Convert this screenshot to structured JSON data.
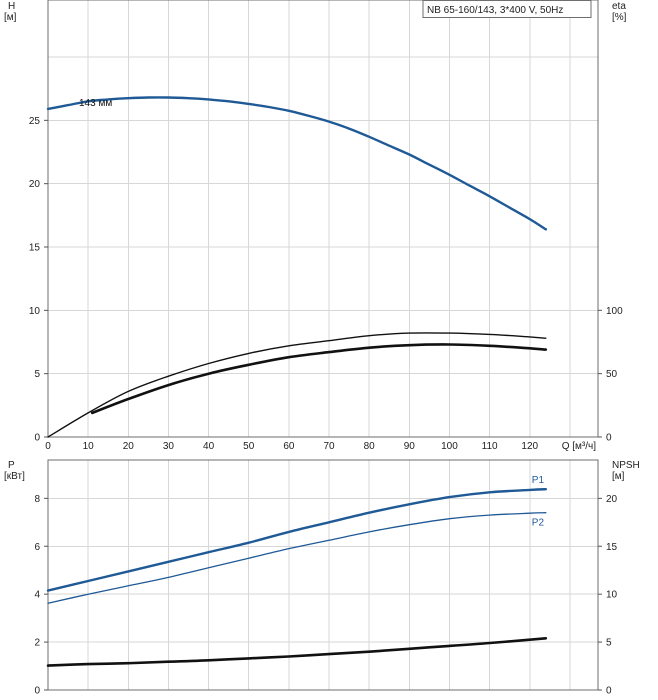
{
  "chart_data": [
    {
      "type": "line",
      "title": "NB 65-160/143, 3*400 V, 50Hz",
      "x_axis": {
        "label": "Q [м³/ч]",
        "range": [
          0,
          137
        ],
        "ticks": [
          0,
          10,
          20,
          30,
          40,
          50,
          60,
          70,
          80,
          90,
          100,
          110,
          120
        ]
      },
      "left_axis": {
        "name": "H",
        "unit": "[м]",
        "range": [
          0,
          34.5
        ],
        "ticks": [
          0,
          5,
          10,
          15,
          20,
          25
        ]
      },
      "right_axis": {
        "name": "eta",
        "unit": "[%]",
        "range": [
          0,
          345
        ],
        "ticks": [
          0,
          50,
          100
        ]
      },
      "grid": true,
      "series": [
        {
          "name": "143 мм",
          "axis": "left",
          "color": "#1f5a96",
          "width": 2.4,
          "x": [
            0,
            5,
            10,
            15,
            20,
            25,
            30,
            35,
            40,
            45,
            50,
            55,
            60,
            65,
            70,
            75,
            80,
            85,
            90,
            95,
            100,
            105,
            110,
            115,
            120,
            124
          ],
          "y": [
            25.9,
            26.2,
            26.5,
            26.65,
            26.75,
            26.8,
            26.8,
            26.75,
            26.65,
            26.5,
            26.3,
            26.05,
            25.75,
            25.35,
            24.9,
            24.35,
            23.7,
            23.0,
            22.3,
            21.5,
            20.7,
            19.85,
            19.0,
            18.1,
            17.2,
            16.4
          ]
        },
        {
          "axis": "right",
          "color": "#111111",
          "width": 1.4,
          "x": [
            0,
            10,
            20,
            30,
            40,
            50,
            60,
            70,
            80,
            90,
            100,
            110,
            120,
            124
          ],
          "y": [
            0,
            19,
            36,
            48,
            58,
            66,
            72,
            76,
            80,
            82,
            82,
            81,
            79,
            78
          ]
        },
        {
          "axis": "right",
          "color": "#111111",
          "width": 2.6,
          "x": [
            11,
            20,
            30,
            40,
            50,
            60,
            70,
            80,
            90,
            100,
            110,
            120,
            124
          ],
          "y": [
            19,
            30,
            41,
            50,
            57,
            63,
            67,
            70.5,
            72.5,
            73,
            72,
            70,
            69
          ]
        }
      ]
    },
    {
      "type": "line",
      "x_axis": {
        "range": [
          0,
          137
        ],
        "ticks": [
          0,
          10,
          20,
          30,
          40,
          50,
          60,
          70,
          80,
          90,
          100,
          110,
          120
        ]
      },
      "left_axis": {
        "name": "P",
        "unit": "[кВт]",
        "range": [
          0,
          9.6
        ],
        "ticks": [
          0,
          2,
          4,
          6,
          8
        ]
      },
      "right_axis": {
        "name": "NPSH",
        "unit": "[м]",
        "range": [
          0,
          24
        ],
        "ticks": [
          0,
          5,
          10,
          15,
          20
        ]
      },
      "grid": true,
      "series": [
        {
          "name": "P1",
          "axis": "left",
          "color": "#1f5a96",
          "width": 2.4,
          "x": [
            0,
            10,
            20,
            30,
            40,
            50,
            60,
            70,
            80,
            90,
            100,
            110,
            120,
            124
          ],
          "y": [
            4.15,
            4.55,
            4.95,
            5.35,
            5.75,
            6.15,
            6.6,
            7.0,
            7.4,
            7.75,
            8.05,
            8.25,
            8.35,
            8.38
          ]
        },
        {
          "name": "P2",
          "axis": "left",
          "color": "#1f5a96",
          "width": 1.3,
          "x": [
            0,
            10,
            20,
            30,
            40,
            50,
            60,
            70,
            80,
            90,
            100,
            110,
            120,
            124
          ],
          "y": [
            3.62,
            4.0,
            4.35,
            4.7,
            5.1,
            5.5,
            5.9,
            6.25,
            6.6,
            6.9,
            7.15,
            7.3,
            7.38,
            7.4
          ]
        },
        {
          "axis": "right",
          "color": "#111111",
          "width": 2.6,
          "x": [
            0,
            10,
            20,
            30,
            40,
            50,
            60,
            70,
            80,
            90,
            100,
            110,
            120,
            124
          ],
          "y": [
            2.55,
            2.7,
            2.8,
            2.95,
            3.1,
            3.3,
            3.5,
            3.75,
            4.0,
            4.3,
            4.6,
            4.9,
            5.25,
            5.4
          ]
        }
      ]
    }
  ]
}
